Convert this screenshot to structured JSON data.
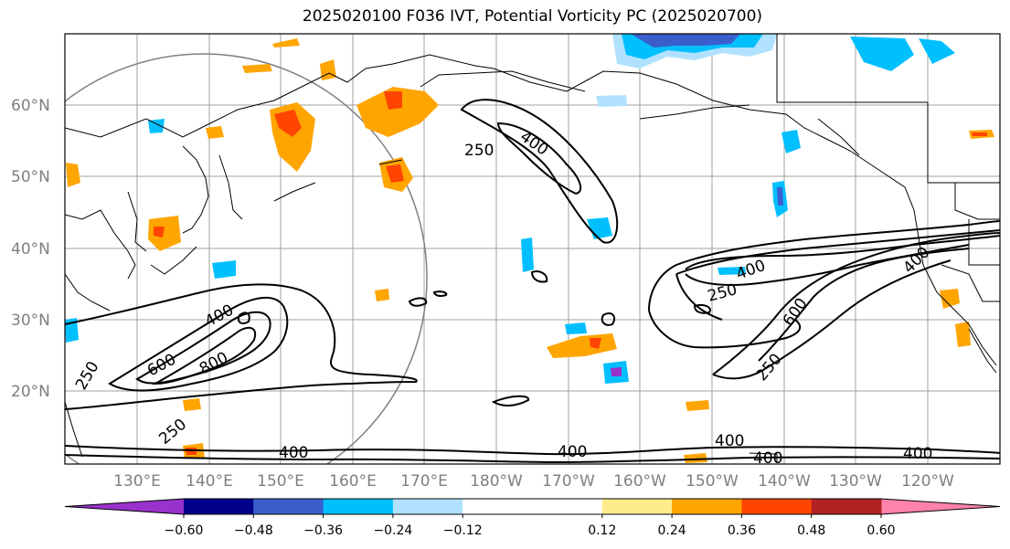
{
  "title": "2025020100 F036 IVT, Potential Vorticity PC (2025020700)",
  "map": {
    "lat_labels": [
      "60°N",
      "50°N",
      "40°N",
      "30°N",
      "20°N"
    ],
    "lon_labels": [
      "130°E",
      "140°E",
      "150°E",
      "160°E",
      "170°E",
      "180°W",
      "170°W",
      "160°W",
      "150°W",
      "140°W",
      "130°W",
      "120°W"
    ],
    "contour_labels": [
      {
        "text": "250"
      },
      {
        "text": "400"
      },
      {
        "text": "400"
      },
      {
        "text": "600"
      },
      {
        "text": "800"
      },
      {
        "text": "250"
      },
      {
        "text": "250"
      },
      {
        "text": "400"
      },
      {
        "text": "400"
      },
      {
        "text": "600"
      },
      {
        "text": "250"
      },
      {
        "text": "400"
      },
      {
        "text": "250"
      },
      {
        "text": "400"
      },
      {
        "text": "400"
      },
      {
        "text": "400"
      },
      {
        "text": "400"
      }
    ]
  },
  "colorbar": {
    "colors": [
      "#9932cc",
      "#00008b",
      "#3a5fcd",
      "#00bfff",
      "#b0e2ff",
      "#ffffff",
      "#ffffff",
      "#ffec8b",
      "#ffa500",
      "#ff4500",
      "#b22222",
      "#ff82ab"
    ],
    "tick_labels": [
      "-0.60",
      "-0.48",
      "-0.36",
      "-0.24",
      "-0.12",
      "0.12",
      "0.24",
      "0.36",
      "0.48",
      "0.60"
    ]
  },
  "colors": {
    "contour": "#000000",
    "coast": "#000000",
    "grid": "#a0a0a0",
    "circle": "#808080"
  }
}
